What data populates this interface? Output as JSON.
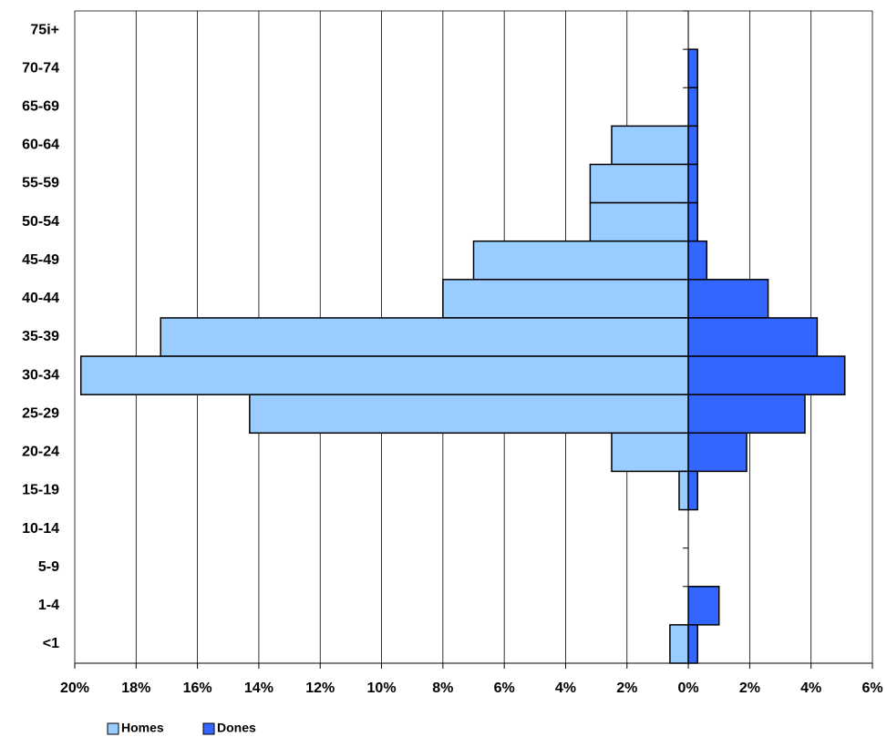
{
  "chart_data": {
    "type": "bar",
    "orientation": "horizontal",
    "categories": [
      "75i+",
      "70-74",
      "65-69",
      "60-64",
      "55-59",
      "50-54",
      "45-49",
      "40-44",
      "35-39",
      "30-34",
      "25-29",
      "20-24",
      "15-19",
      "10-14",
      "5-9",
      "1-4",
      "<1"
    ],
    "series": [
      {
        "name": "Homes",
        "color": "#99ccff",
        "values": [
          0,
          0,
          0,
          -2.5,
          -3.2,
          -3.2,
          -7.0,
          -8.0,
          -17.2,
          -19.8,
          -14.3,
          -2.5,
          -0.3,
          0,
          0,
          0,
          -0.6
        ]
      },
      {
        "name": "Dones",
        "color": "#3366ff",
        "values": [
          0,
          0.3,
          0.3,
          0.3,
          0.3,
          0.3,
          0.6,
          2.6,
          4.2,
          5.1,
          3.8,
          1.9,
          0.3,
          0,
          0,
          1.0,
          0.3
        ]
      }
    ],
    "xlim": [
      -20,
      6
    ],
    "xticks": [
      {
        "value": -20,
        "label": "20%"
      },
      {
        "value": -18,
        "label": "18%"
      },
      {
        "value": -16,
        "label": "16%"
      },
      {
        "value": -14,
        "label": "14%"
      },
      {
        "value": -12,
        "label": "12%"
      },
      {
        "value": -10,
        "label": "10%"
      },
      {
        "value": -8,
        "label": "8%"
      },
      {
        "value": -6,
        "label": "6%"
      },
      {
        "value": -4,
        "label": "4%"
      },
      {
        "value": -2,
        "label": "2%"
      },
      {
        "value": 0,
        "label": "0%"
      },
      {
        "value": 2,
        "label": "2%"
      },
      {
        "value": 4,
        "label": "4%"
      },
      {
        "value": 6,
        "label": "6%"
      }
    ],
    "grid": true,
    "legend": "bottom"
  }
}
